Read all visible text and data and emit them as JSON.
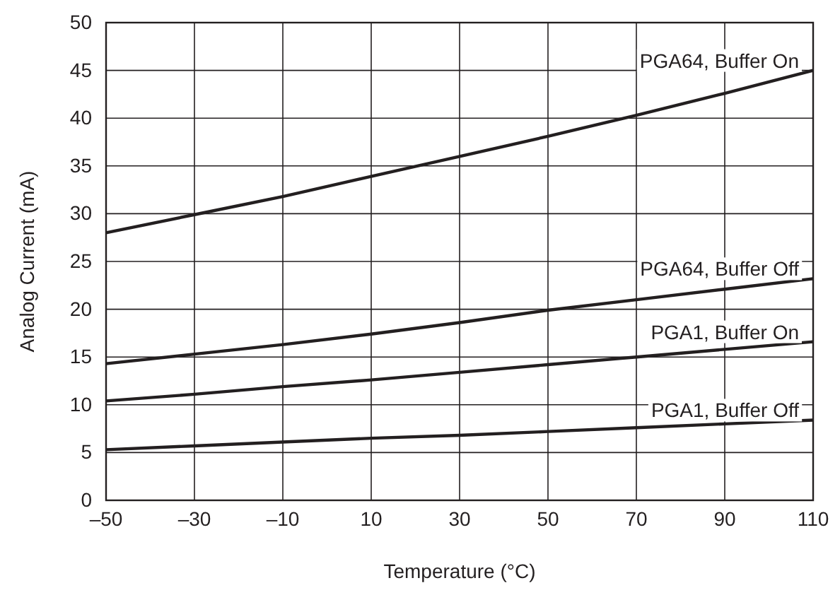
{
  "chart_data": {
    "type": "line",
    "xlabel": "Temperature (°C)",
    "ylabel": "Analog Current (mA)",
    "xlim": [
      -50,
      110
    ],
    "ylim": [
      0,
      50
    ],
    "xticks": [
      {
        "value": -50,
        "label": "–50"
      },
      {
        "value": -30,
        "label": "–30"
      },
      {
        "value": -10,
        "label": "–10"
      },
      10,
      30,
      50,
      70,
      90,
      110
    ],
    "yticks": [
      0,
      5,
      10,
      15,
      20,
      25,
      30,
      35,
      40,
      45,
      50
    ],
    "grid": true,
    "marker": "none",
    "line_style": "solid",
    "x": [
      -50,
      -30,
      -10,
      10,
      30,
      50,
      70,
      90,
      110
    ],
    "series": [
      {
        "name": "PGA64, Buffer On",
        "color": "#231f20",
        "values": [
          28,
          29.9,
          31.8,
          33.9,
          36,
          38.1,
          40.3,
          42.6,
          45
        ]
      },
      {
        "name": "PGA64, Buffer Off",
        "color": "#231f20",
        "values": [
          14.3,
          15.3,
          16.3,
          17.4,
          18.6,
          19.9,
          21,
          22.1,
          23.2
        ]
      },
      {
        "name": "PGA1, Buffer On",
        "color": "#231f20",
        "values": [
          10.4,
          11.1,
          11.9,
          12.6,
          13.4,
          14.2,
          15,
          15.8,
          16.6
        ]
      },
      {
        "name": "PGA1, Buffer Off",
        "color": "#231f20",
        "values": [
          5.3,
          5.7,
          6.1,
          6.5,
          6.8,
          7.2,
          7.6,
          8,
          8.4
        ]
      }
    ]
  }
}
